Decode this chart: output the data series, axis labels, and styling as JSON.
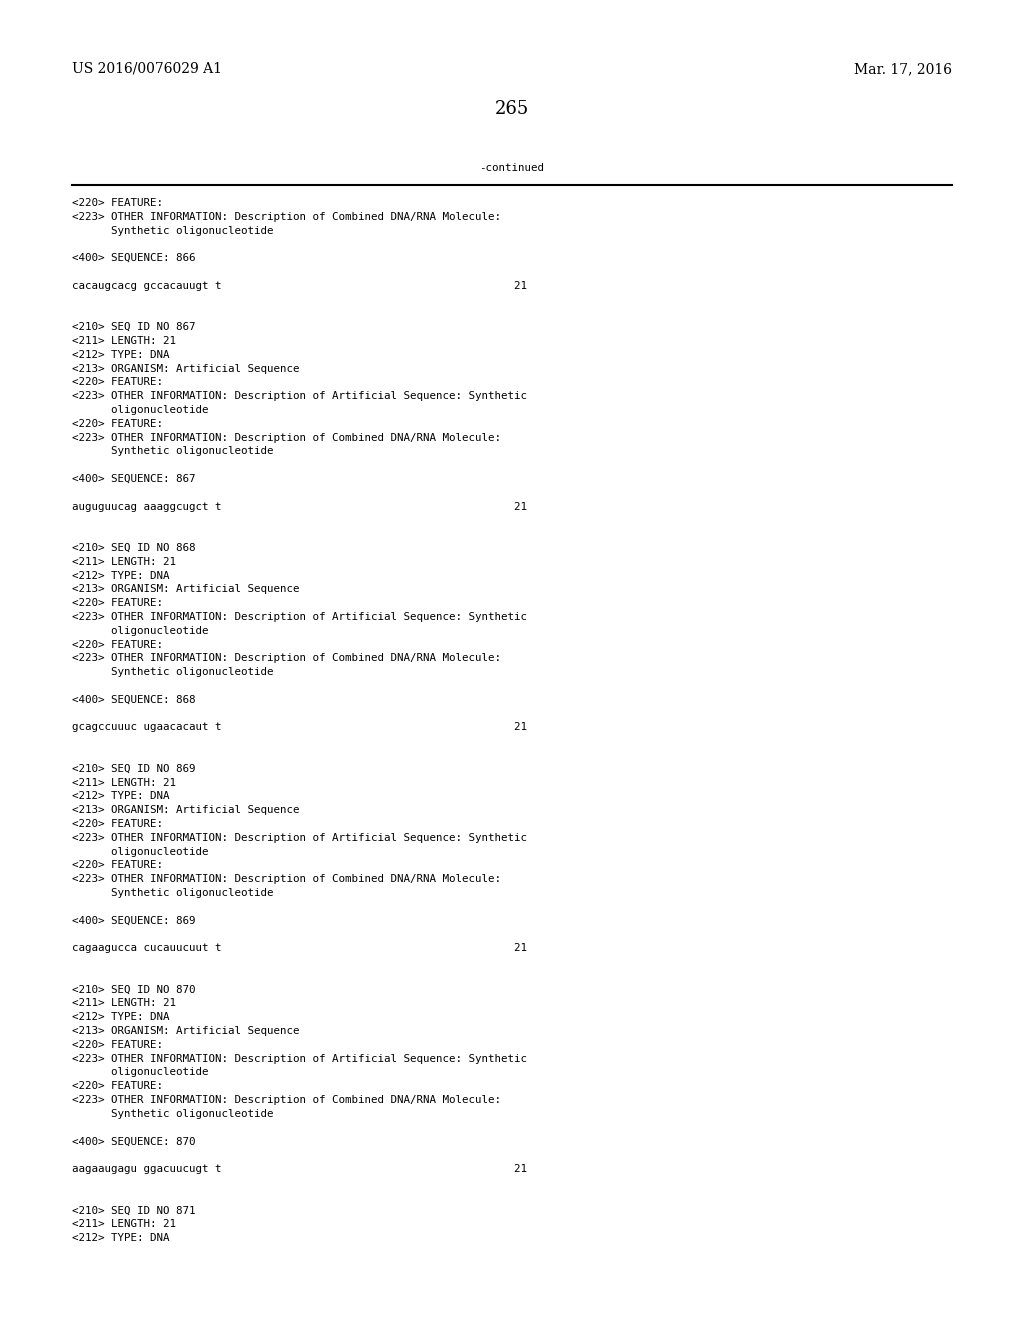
{
  "background_color": "#ffffff",
  "header_left": "US 2016/0076029 A1",
  "header_right": "Mar. 17, 2016",
  "page_number": "265",
  "continued_label": "-continued",
  "line_color": "#000000",
  "text_color": "#000000",
  "font_size_header": 10.0,
  "font_size_body": 7.8,
  "font_size_page": 13.0,
  "content_lines": [
    "<220> FEATURE:",
    "<223> OTHER INFORMATION: Description of Combined DNA/RNA Molecule:",
    "      Synthetic oligonucleotide",
    "",
    "<400> SEQUENCE: 866",
    "",
    "cacaugcacg gccacauugt t                                             21",
    "",
    "",
    "<210> SEQ ID NO 867",
    "<211> LENGTH: 21",
    "<212> TYPE: DNA",
    "<213> ORGANISM: Artificial Sequence",
    "<220> FEATURE:",
    "<223> OTHER INFORMATION: Description of Artificial Sequence: Synthetic",
    "      oligonucleotide",
    "<220> FEATURE:",
    "<223> OTHER INFORMATION: Description of Combined DNA/RNA Molecule:",
    "      Synthetic oligonucleotide",
    "",
    "<400> SEQUENCE: 867",
    "",
    "auguguucag aaaggcugct t                                             21",
    "",
    "",
    "<210> SEQ ID NO 868",
    "<211> LENGTH: 21",
    "<212> TYPE: DNA",
    "<213> ORGANISM: Artificial Sequence",
    "<220> FEATURE:",
    "<223> OTHER INFORMATION: Description of Artificial Sequence: Synthetic",
    "      oligonucleotide",
    "<220> FEATURE:",
    "<223> OTHER INFORMATION: Description of Combined DNA/RNA Molecule:",
    "      Synthetic oligonucleotide",
    "",
    "<400> SEQUENCE: 868",
    "",
    "gcagccuuuc ugaacacaut t                                             21",
    "",
    "",
    "<210> SEQ ID NO 869",
    "<211> LENGTH: 21",
    "<212> TYPE: DNA",
    "<213> ORGANISM: Artificial Sequence",
    "<220> FEATURE:",
    "<223> OTHER INFORMATION: Description of Artificial Sequence: Synthetic",
    "      oligonucleotide",
    "<220> FEATURE:",
    "<223> OTHER INFORMATION: Description of Combined DNA/RNA Molecule:",
    "      Synthetic oligonucleotide",
    "",
    "<400> SEQUENCE: 869",
    "",
    "cagaagucca cucauucuut t                                             21",
    "",
    "",
    "<210> SEQ ID NO 870",
    "<211> LENGTH: 21",
    "<212> TYPE: DNA",
    "<213> ORGANISM: Artificial Sequence",
    "<220> FEATURE:",
    "<223> OTHER INFORMATION: Description of Artificial Sequence: Synthetic",
    "      oligonucleotide",
    "<220> FEATURE:",
    "<223> OTHER INFORMATION: Description of Combined DNA/RNA Molecule:",
    "      Synthetic oligonucleotide",
    "",
    "<400> SEQUENCE: 870",
    "",
    "aagaaugagu ggacuucugt t                                             21",
    "",
    "",
    "<210> SEQ ID NO 871",
    "<211> LENGTH: 21",
    "<212> TYPE: DNA"
  ]
}
